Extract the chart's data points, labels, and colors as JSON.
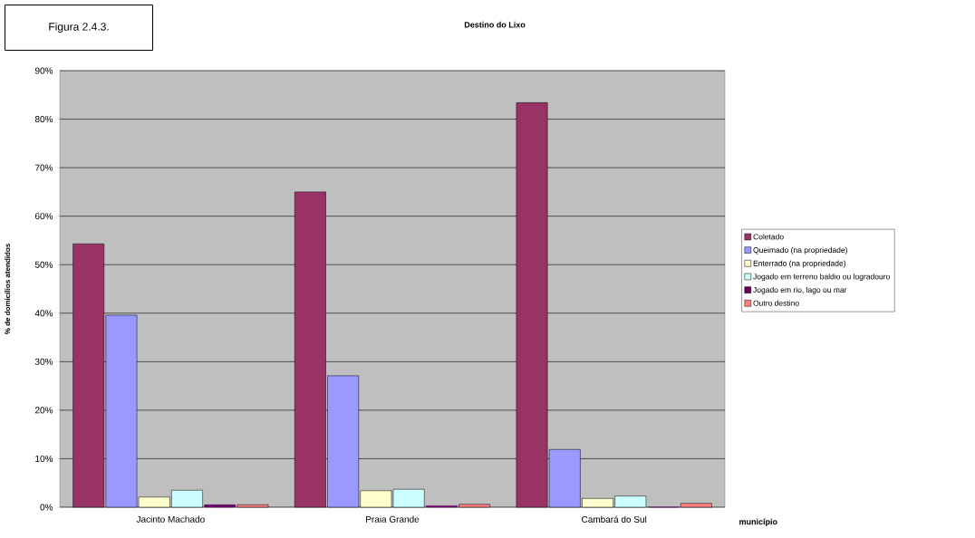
{
  "chart_data": {
    "type": "bar",
    "title": "Destino do Lixo",
    "ylabel": "% de domicílios atendidos",
    "xlabel": "município",
    "annotations": [
      "Figura 2.4.3."
    ],
    "categories": [
      "Jacinto Machado",
      "Praia Grande",
      "Cambará do Sul"
    ],
    "series": [
      {
        "name": "Coletado",
        "color": "#993366",
        "values": [
          54.3,
          65,
          83.4
        ]
      },
      {
        "name": "Queimado (na propriedade)",
        "color": "#9999ff",
        "values": [
          39.6,
          27.1,
          11.9
        ]
      },
      {
        "name": "Enterrado (na propriedade)",
        "color": "#ffffcc",
        "values": [
          2.1,
          3.4,
          1.8
        ]
      },
      {
        "name": "Jogado em terreno baldio ou logradouro",
        "color": "#ccffff",
        "values": [
          3.5,
          3.7,
          2.3
        ]
      },
      {
        "name": "Jogado em rio, lago ou mar",
        "color": "#660066",
        "values": [
          0.5,
          0.3,
          0
        ]
      },
      {
        "name": "Outro destino",
        "color": "#ff8080",
        "values": [
          0.5,
          0.6,
          0.8
        ]
      }
    ],
    "ylim": [
      0,
      90
    ],
    "yticks": [
      {
        "value": 0,
        "label": "0%"
      },
      {
        "value": 10,
        "label": "10%"
      },
      {
        "value": 20,
        "label": "20%"
      },
      {
        "value": 30,
        "label": "30%"
      },
      {
        "value": 40,
        "label": "40%"
      },
      {
        "value": 50,
        "label": "50%"
      },
      {
        "value": 60,
        "label": "60%"
      },
      {
        "value": 70,
        "label": "70%"
      },
      {
        "value": 80,
        "label": "80%"
      },
      {
        "value": 90,
        "label": "90%"
      }
    ],
    "grid": "y",
    "legend": "right"
  }
}
